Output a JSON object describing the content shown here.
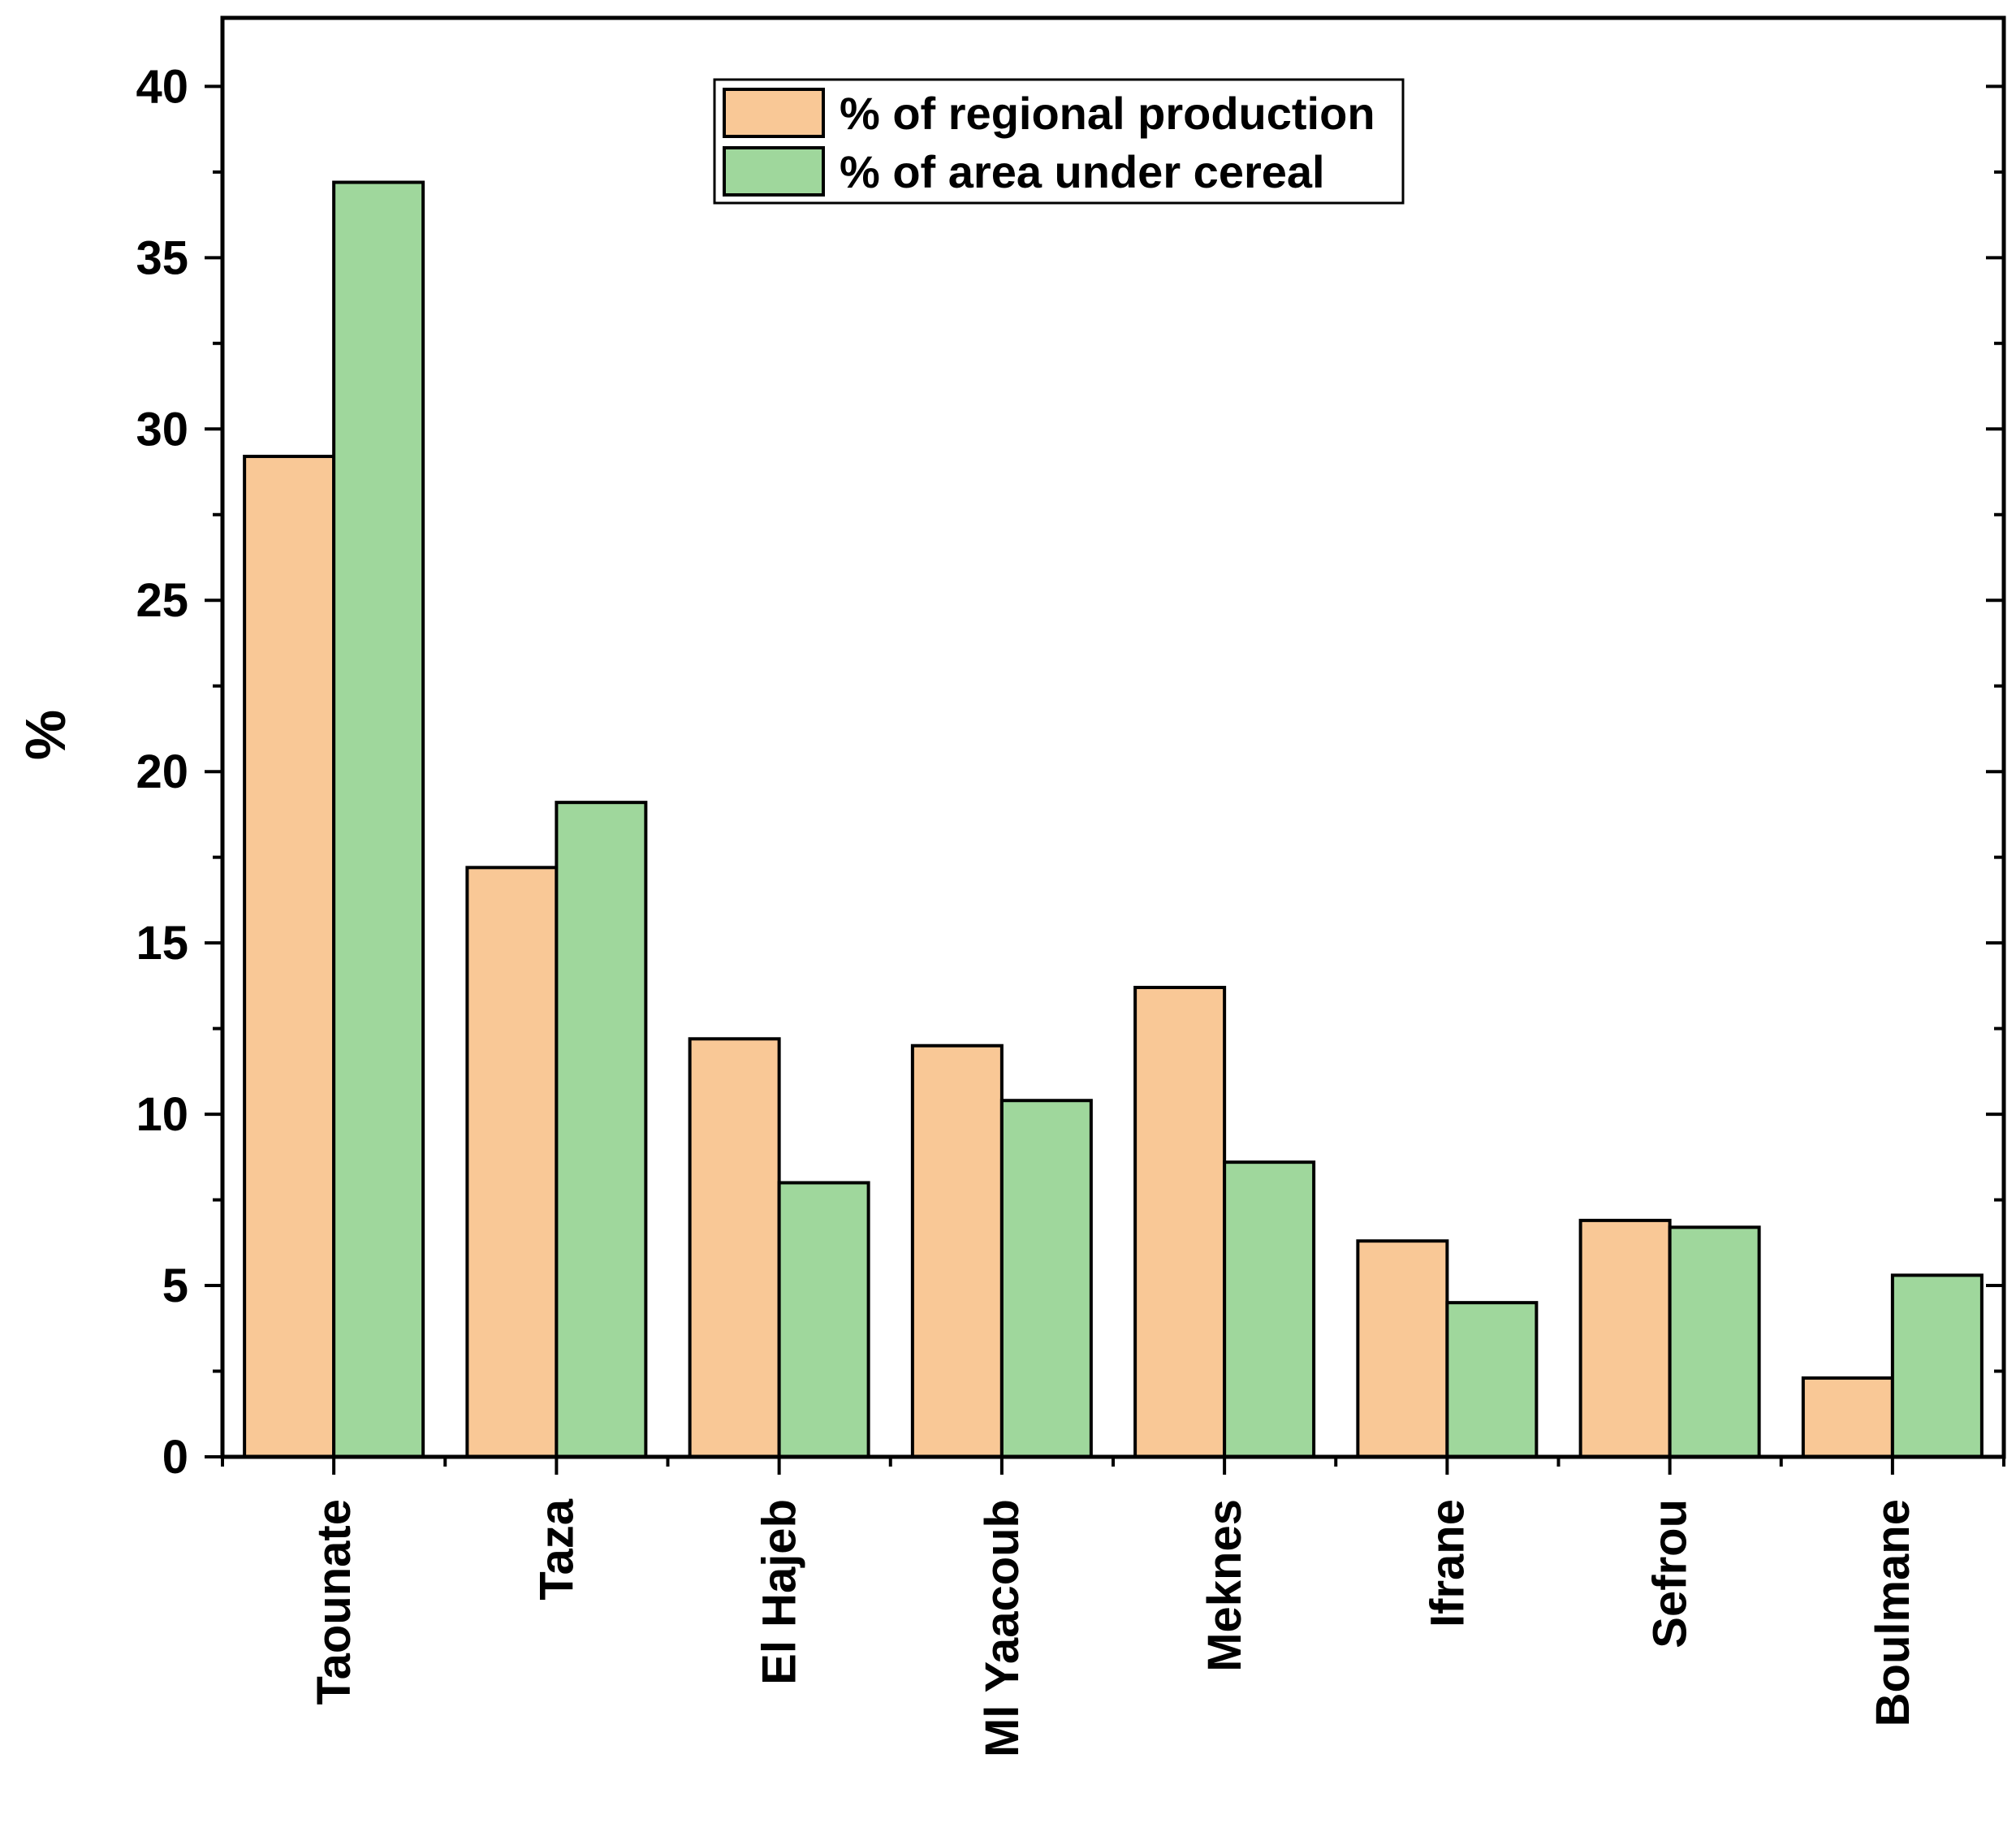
{
  "chart_data": {
    "type": "bar",
    "title": "",
    "xlabel": "",
    "ylabel": "%",
    "ylim": [
      0,
      42
    ],
    "yticks": [
      0,
      5,
      10,
      15,
      20,
      25,
      30,
      35,
      40
    ],
    "grid": false,
    "legend_position": "top-center",
    "categories": [
      "Taounate",
      "Taza",
      "El Hajeb",
      "Ml Yaacoub",
      "Meknes",
      "Ifrane",
      "Sefrou",
      "Boulmane"
    ],
    "series": [
      {
        "name": "% of regional production",
        "color": "#F9C896",
        "values": [
          29.2,
          17.2,
          12.2,
          12.0,
          13.7,
          6.3,
          6.9,
          2.3
        ]
      },
      {
        "name": "% of area under cereal",
        "color": "#9FD79C",
        "values": [
          37.2,
          19.1,
          8.0,
          10.4,
          8.6,
          4.5,
          6.7,
          5.3
        ]
      }
    ]
  }
}
